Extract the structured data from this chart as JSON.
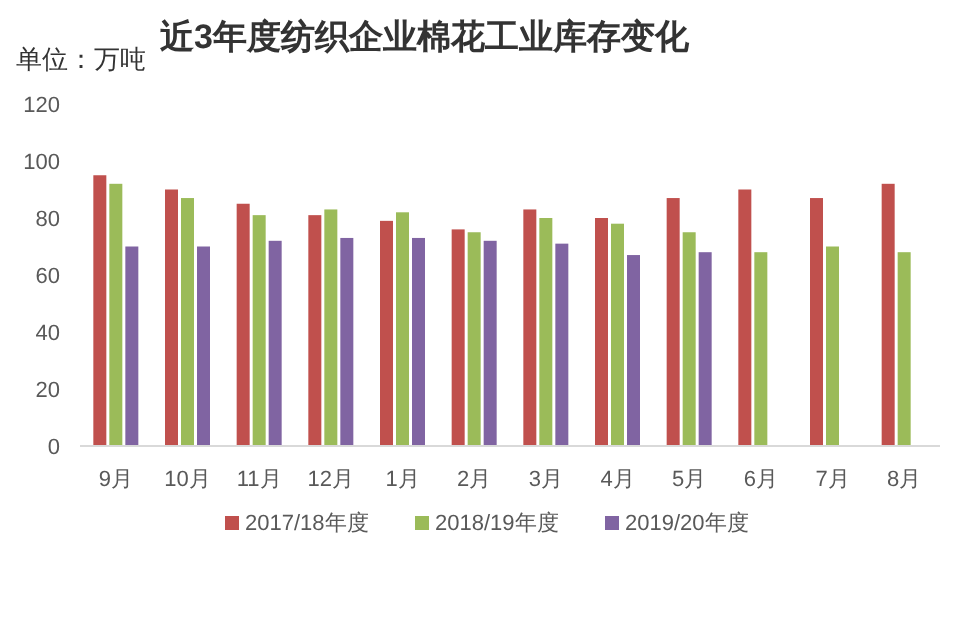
{
  "chart_data": {
    "type": "bar",
    "title": "近3年度纺织企业棉花工业库存变化",
    "ylabel": "单位：万吨",
    "categories": [
      "9月",
      "10月",
      "11月",
      "12月",
      "1月",
      "2月",
      "3月",
      "4月",
      "5月",
      "6月",
      "7月",
      "8月"
    ],
    "series": [
      {
        "name": "2017/18年度",
        "color": "#c0504d",
        "values": [
          95,
          90,
          85,
          81,
          79,
          76,
          83,
          80,
          87,
          90,
          87,
          92
        ]
      },
      {
        "name": "2018/19年度",
        "color": "#9bbb59",
        "values": [
          92,
          87,
          81,
          83,
          82,
          75,
          80,
          78,
          75,
          68,
          70,
          68
        ]
      },
      {
        "name": "2019/20年度",
        "color": "#8064a2",
        "values": [
          70,
          70,
          72,
          73,
          73,
          72,
          71,
          67,
          68,
          null,
          null,
          null
        ]
      }
    ],
    "ylim": [
      0,
      120
    ],
    "yticks": [
      0,
      20,
      40,
      60,
      80,
      100,
      120
    ],
    "grid": false,
    "legend": "bottom"
  }
}
